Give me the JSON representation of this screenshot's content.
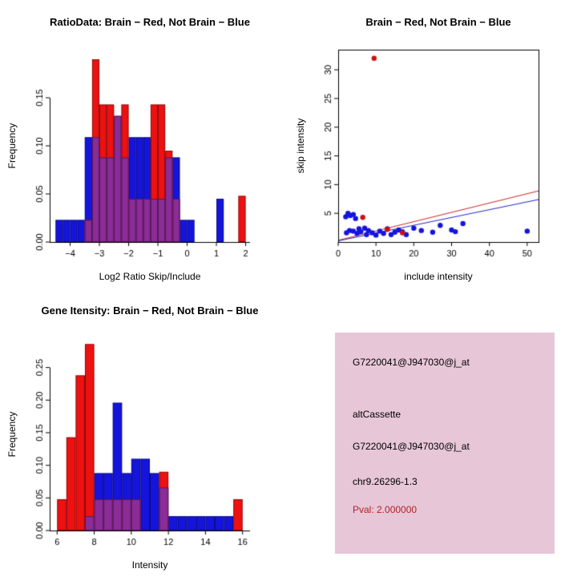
{
  "figure": {
    "background": "#ffffff",
    "brain_color": "#ee1111",
    "not_brain_color": "#1414dd",
    "overlap_color": "#8b2c97"
  },
  "chart_data": [
    {
      "id": "ratio-hist",
      "type": "bar",
      "title": "RatioData: Brain − Red, Not Brain − Blue",
      "xlabel": "Log2 Ratio Skip/Include",
      "ylabel": "Frequency",
      "xlim": [
        -4.7,
        2.15
      ],
      "ylim": [
        0,
        0.2
      ],
      "xticks": [
        -4,
        -3,
        -2,
        -1,
        0,
        1,
        2
      ],
      "xtick_labels": [
        "−4",
        "−3",
        "−2",
        "−1",
        "0",
        "1",
        "2"
      ],
      "yticks": [
        0,
        0.05,
        0.1,
        0.15
      ],
      "ytick_labels": [
        "0.00",
        "0.05",
        "0.10",
        "0.15"
      ],
      "frame": "axes",
      "bin_width": 0.25,
      "overlap_color": "#8b2c97",
      "series": [
        {
          "name": "Not Brain (blue)",
          "color": "#1414dd",
          "bins": [
            {
              "x": -4.5,
              "h": 0.023
            },
            {
              "x": -4.25,
              "h": 0.023
            },
            {
              "x": -4.0,
              "h": 0.023
            },
            {
              "x": -3.75,
              "h": 0.023
            },
            {
              "x": -3.5,
              "h": 0.109
            },
            {
              "x": -3.25,
              "h": 0.109
            },
            {
              "x": -3.0,
              "h": 0.088
            },
            {
              "x": -2.75,
              "h": 0.088
            },
            {
              "x": -2.5,
              "h": 0.131
            },
            {
              "x": -2.25,
              "h": 0.088
            },
            {
              "x": -2.0,
              "h": 0.109
            },
            {
              "x": -1.75,
              "h": 0.109
            },
            {
              "x": -1.5,
              "h": 0.109
            },
            {
              "x": -1.25,
              "h": 0.045
            },
            {
              "x": -1.0,
              "h": 0.045
            },
            {
              "x": -0.75,
              "h": 0.088
            },
            {
              "x": -0.5,
              "h": 0.088
            },
            {
              "x": -0.25,
              "h": 0.023
            },
            {
              "x": 0.0,
              "h": 0.023
            },
            {
              "x": 1.0,
              "h": 0.045
            }
          ]
        },
        {
          "name": "Brain (red)",
          "color": "#ee1111",
          "bins": [
            {
              "x": -3.5,
              "h": 0.023
            },
            {
              "x": -3.25,
              "h": 0.19
            },
            {
              "x": -3.0,
              "h": 0.143
            },
            {
              "x": -2.75,
              "h": 0.143
            },
            {
              "x": -2.5,
              "h": 0.131
            },
            {
              "x": -2.25,
              "h": 0.143
            },
            {
              "x": -2.0,
              "h": 0.045
            },
            {
              "x": -1.75,
              "h": 0.045
            },
            {
              "x": -1.5,
              "h": 0.045
            },
            {
              "x": -1.25,
              "h": 0.143
            },
            {
              "x": -1.0,
              "h": 0.143
            },
            {
              "x": -0.75,
              "h": 0.095
            },
            {
              "x": -0.5,
              "h": 0.045
            },
            {
              "x": 1.75,
              "h": 0.048
            }
          ]
        }
      ]
    },
    {
      "id": "scatter",
      "type": "scatter",
      "title": "Brain − Red, Not Brain − Blue",
      "xlabel": "include intensity",
      "ylabel": "skip intensity",
      "xlim": [
        0,
        53
      ],
      "ylim": [
        0,
        33.5
      ],
      "xticks": [
        0,
        10,
        20,
        30,
        40,
        50
      ],
      "xtick_labels": [
        "0",
        "10",
        "20",
        "30",
        "40",
        "50"
      ],
      "yticks": [
        5,
        10,
        15,
        20,
        25,
        30
      ],
      "ytick_labels": [
        "5",
        "10",
        "15",
        "20",
        "25",
        "30"
      ],
      "frame": "box",
      "series": [
        {
          "name": "Not Brain (blue)",
          "color": "#1414dd",
          "points": [
            [
              2,
              4.4
            ],
            [
              2.6,
              5.0
            ],
            [
              3.2,
              4.6
            ],
            [
              4,
              4.8
            ],
            [
              4.6,
              4.1
            ],
            [
              2.2,
              1.6
            ],
            [
              3,
              2.0
            ],
            [
              4,
              1.9
            ],
            [
              5,
              1.5
            ],
            [
              5.5,
              2.3
            ],
            [
              6,
              1.8
            ],
            [
              7,
              2.4
            ],
            [
              7.5,
              1.3
            ],
            [
              8,
              2.0
            ],
            [
              9,
              1.6
            ],
            [
              10,
              1.2
            ],
            [
              11,
              1.9
            ],
            [
              12,
              1.5
            ],
            [
              13,
              2.3
            ],
            [
              14,
              1.3
            ],
            [
              15,
              1.7
            ],
            [
              16,
              2.1
            ],
            [
              17,
              1.8
            ],
            [
              18,
              1.3
            ],
            [
              20,
              2.4
            ],
            [
              22,
              2.0
            ],
            [
              25,
              1.7
            ],
            [
              27,
              2.9
            ],
            [
              30,
              2.1
            ],
            [
              31,
              1.8
            ],
            [
              33,
              3.2
            ],
            [
              50,
              1.9
            ]
          ]
        },
        {
          "name": "Brain (red)",
          "color": "#cc1111",
          "points": [
            [
              9.5,
              32
            ],
            [
              6.5,
              4.3
            ],
            [
              13,
              2.2
            ],
            [
              17,
              1.6
            ]
          ]
        }
      ],
      "lines": [
        {
          "color": "#cc2222",
          "x1": 0,
          "y1": 0.3,
          "x2": 53,
          "y2": 8.9
        },
        {
          "color": "#2222cc",
          "x1": 0,
          "y1": 0.2,
          "x2": 53,
          "y2": 7.4
        }
      ]
    },
    {
      "id": "gene-hist",
      "type": "bar",
      "title": "Gene Itensity: Brain − Red, Not Brain − Blue",
      "xlabel": "Intensity",
      "ylabel": "Frequency",
      "xlim": [
        5.6,
        16.4
      ],
      "ylim": [
        0,
        0.295
      ],
      "xticks": [
        6,
        8,
        10,
        12,
        14,
        16
      ],
      "xtick_labels": [
        "6",
        "8",
        "10",
        "12",
        "14",
        "16"
      ],
      "yticks": [
        0,
        0.05,
        0.1,
        0.15,
        0.2,
        0.25
      ],
      "ytick_labels": [
        "0.00",
        "0.05",
        "0.10",
        "0.15",
        "0.20",
        "0.25"
      ],
      "frame": "axes",
      "bin_width": 0.5,
      "overlap_color": "#8b2c97",
      "series": [
        {
          "name": "Not Brain (blue)",
          "color": "#1414dd",
          "bins": [
            {
              "x": 7.5,
              "h": 0.022
            },
            {
              "x": 8.0,
              "h": 0.088
            },
            {
              "x": 8.5,
              "h": 0.088
            },
            {
              "x": 9.0,
              "h": 0.196
            },
            {
              "x": 9.5,
              "h": 0.088
            },
            {
              "x": 10.0,
              "h": 0.11
            },
            {
              "x": 10.5,
              "h": 0.11
            },
            {
              "x": 11.0,
              "h": 0.088
            },
            {
              "x": 11.5,
              "h": 0.066
            },
            {
              "x": 12.0,
              "h": 0.022
            },
            {
              "x": 12.5,
              "h": 0.022
            },
            {
              "x": 13.0,
              "h": 0.022
            },
            {
              "x": 13.5,
              "h": 0.022
            },
            {
              "x": 14.0,
              "h": 0.022
            },
            {
              "x": 14.5,
              "h": 0.022
            },
            {
              "x": 15.0,
              "h": 0.022
            }
          ]
        },
        {
          "name": "Brain (red)",
          "color": "#ee1111",
          "bins": [
            {
              "x": 6.0,
              "h": 0.048
            },
            {
              "x": 6.5,
              "h": 0.143
            },
            {
              "x": 7.0,
              "h": 0.238
            },
            {
              "x": 7.5,
              "h": 0.286
            },
            {
              "x": 8.0,
              "h": 0.048
            },
            {
              "x": 8.5,
              "h": 0.048
            },
            {
              "x": 9.0,
              "h": 0.048
            },
            {
              "x": 9.5,
              "h": 0.048
            },
            {
              "x": 10.0,
              "h": 0.048
            },
            {
              "x": 11.5,
              "h": 0.09
            },
            {
              "x": 15.5,
              "h": 0.048
            }
          ]
        }
      ]
    }
  ],
  "info_box": {
    "bg": "#e7c6d8",
    "lines": [
      {
        "text": "G7220041@J947030@j_at",
        "color": "#000000"
      },
      {
        "text": "altCassette",
        "color": "#000000"
      },
      {
        "text": "G7220041@J947030@j_at",
        "color": "#000000"
      },
      {
        "text": "chr9.26296-1.3",
        "color": "#000000"
      },
      {
        "text": "Pval: 2.000000",
        "color": "#b22222"
      }
    ]
  }
}
